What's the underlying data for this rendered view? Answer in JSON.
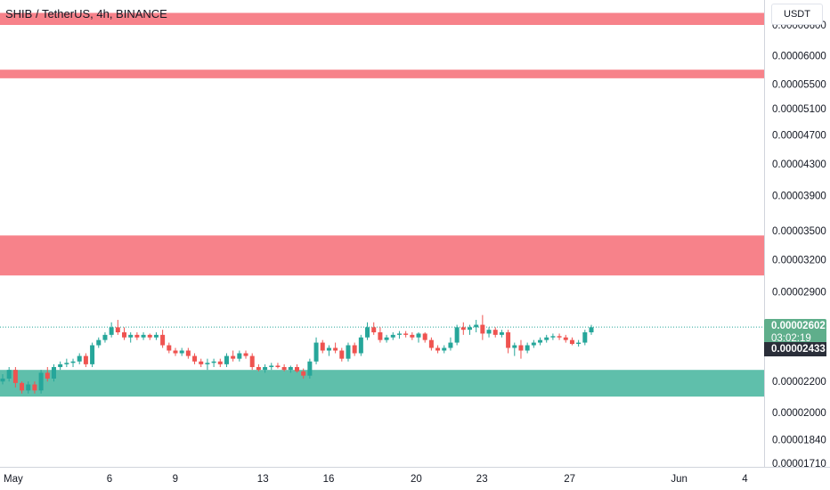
{
  "header": {
    "title": "SHIB / TetherUS, 4h, BINANCE",
    "currency": "USDT"
  },
  "price_tag": {
    "price": "0.00002602",
    "countdown": "03:02:19"
  },
  "low_tag": {
    "price": "0.00002433"
  },
  "colors": {
    "up": "#26a69a",
    "down": "#ef5350",
    "resistance_zone": "#f7828a",
    "support_zone": "#5fbfab",
    "grid_text": "#131722",
    "axis_line": "#d1d4dc"
  },
  "chart_data": {
    "type": "candlestick",
    "title": "SHIB / TetherUS, 4h, BINANCE",
    "y_axis": {
      "ticks": [
        {
          "label": "0.00006600",
          "value": 6.6
        },
        {
          "label": "0.00006000",
          "value": 6.0
        },
        {
          "label": "0.00005500",
          "value": 5.5
        },
        {
          "label": "0.00005100",
          "value": 5.1
        },
        {
          "label": "0.00004700",
          "value": 4.7
        },
        {
          "label": "0.00004300",
          "value": 4.3
        },
        {
          "label": "0.00003900",
          "value": 3.9
        },
        {
          "label": "0.00003500",
          "value": 3.5
        },
        {
          "label": "0.00003200",
          "value": 3.2
        },
        {
          "label": "0.00002900",
          "value": 2.9
        },
        {
          "label": "0.00002200",
          "value": 2.2
        },
        {
          "label": "0.00002000",
          "value": 2.0
        },
        {
          "label": "0.00001840",
          "value": 1.84
        },
        {
          "label": "0.00001710",
          "value": 1.71
        }
      ],
      "scale": "log"
    },
    "x_axis": {
      "ticks": [
        {
          "label": "May",
          "day": 1
        },
        {
          "label": "6",
          "day": 6
        },
        {
          "label": "9",
          "day": 9
        },
        {
          "label": "13",
          "day": 13
        },
        {
          "label": "16",
          "day": 16
        },
        {
          "label": "20",
          "day": 20
        },
        {
          "label": "23",
          "day": 23
        },
        {
          "label": "27",
          "day": 27
        },
        {
          "label": "Jun",
          "day": 32
        },
        {
          "label": "4",
          "day": 35
        }
      ]
    },
    "zones": [
      {
        "kind": "resistance",
        "from": 6.6,
        "to": 6.85
      },
      {
        "kind": "resistance",
        "from": 5.6,
        "to": 5.75
      },
      {
        "kind": "resistance",
        "from": 3.05,
        "to": 3.45
      },
      {
        "kind": "support",
        "from": 2.1,
        "to": 2.28
      }
    ],
    "last_price": 2.602,
    "low_price": 2.433,
    "candles": [
      [
        2.2,
        2.25,
        2.18,
        2.22
      ],
      [
        2.22,
        2.3,
        2.2,
        2.28
      ],
      [
        2.28,
        2.3,
        2.16,
        2.19
      ],
      [
        2.19,
        2.2,
        2.12,
        2.14
      ],
      [
        2.14,
        2.2,
        2.12,
        2.18
      ],
      [
        2.18,
        2.2,
        2.12,
        2.14
      ],
      [
        2.14,
        2.28,
        2.12,
        2.26
      ],
      [
        2.26,
        2.3,
        2.2,
        2.22
      ],
      [
        2.22,
        2.32,
        2.2,
        2.3
      ],
      [
        2.3,
        2.34,
        2.28,
        2.32
      ],
      [
        2.32,
        2.36,
        2.3,
        2.33
      ],
      [
        2.33,
        2.36,
        2.3,
        2.34
      ],
      [
        2.34,
        2.4,
        2.32,
        2.38
      ],
      [
        2.38,
        2.4,
        2.3,
        2.32
      ],
      [
        2.32,
        2.48,
        2.3,
        2.46
      ],
      [
        2.46,
        2.52,
        2.44,
        2.5
      ],
      [
        2.5,
        2.56,
        2.48,
        2.54
      ],
      [
        2.54,
        2.64,
        2.52,
        2.6
      ],
      [
        2.6,
        2.66,
        2.54,
        2.56
      ],
      [
        2.56,
        2.6,
        2.5,
        2.52
      ],
      [
        2.52,
        2.56,
        2.48,
        2.54
      ],
      [
        2.54,
        2.56,
        2.5,
        2.52
      ],
      [
        2.52,
        2.56,
        2.5,
        2.54
      ],
      [
        2.54,
        2.55,
        2.5,
        2.52
      ],
      [
        2.52,
        2.56,
        2.5,
        2.54
      ],
      [
        2.54,
        2.58,
        2.44,
        2.46
      ],
      [
        2.46,
        2.48,
        2.4,
        2.42
      ],
      [
        2.42,
        2.44,
        2.38,
        2.4
      ],
      [
        2.4,
        2.44,
        2.38,
        2.42
      ],
      [
        2.42,
        2.44,
        2.36,
        2.38
      ],
      [
        2.38,
        2.4,
        2.32,
        2.34
      ],
      [
        2.34,
        2.36,
        2.3,
        2.32
      ],
      [
        2.32,
        2.36,
        2.28,
        2.33
      ],
      [
        2.33,
        2.36,
        2.3,
        2.34
      ],
      [
        2.34,
        2.36,
        2.3,
        2.32
      ],
      [
        2.32,
        2.4,
        2.3,
        2.38
      ],
      [
        2.38,
        2.42,
        2.34,
        2.36
      ],
      [
        2.36,
        2.42,
        2.34,
        2.4
      ],
      [
        2.4,
        2.42,
        2.36,
        2.38
      ],
      [
        2.38,
        2.4,
        2.28,
        2.3
      ],
      [
        2.3,
        2.32,
        2.27,
        2.28
      ],
      [
        2.28,
        2.32,
        2.26,
        2.3
      ],
      [
        2.3,
        2.33,
        2.28,
        2.31
      ],
      [
        2.31,
        2.33,
        2.29,
        2.3
      ],
      [
        2.3,
        2.32,
        2.27,
        2.28
      ],
      [
        2.28,
        2.31,
        2.26,
        2.3
      ],
      [
        2.3,
        2.32,
        2.26,
        2.27
      ],
      [
        2.27,
        2.29,
        2.22,
        2.24
      ],
      [
        2.24,
        2.36,
        2.22,
        2.34
      ],
      [
        2.34,
        2.52,
        2.32,
        2.48
      ],
      [
        2.48,
        2.5,
        2.4,
        2.42
      ],
      [
        2.42,
        2.46,
        2.38,
        2.44
      ],
      [
        2.44,
        2.48,
        2.4,
        2.42
      ],
      [
        2.42,
        2.44,
        2.34,
        2.36
      ],
      [
        2.36,
        2.48,
        2.34,
        2.46
      ],
      [
        2.46,
        2.48,
        2.38,
        2.4
      ],
      [
        2.4,
        2.54,
        2.38,
        2.52
      ],
      [
        2.52,
        2.64,
        2.5,
        2.6
      ],
      [
        2.6,
        2.64,
        2.54,
        2.56
      ],
      [
        2.56,
        2.6,
        2.48,
        2.5
      ],
      [
        2.5,
        2.54,
        2.48,
        2.52
      ],
      [
        2.52,
        2.56,
        2.5,
        2.54
      ],
      [
        2.54,
        2.57,
        2.51,
        2.55
      ],
      [
        2.55,
        2.57,
        2.52,
        2.54
      ],
      [
        2.54,
        2.56,
        2.5,
        2.52
      ],
      [
        2.52,
        2.56,
        2.48,
        2.55
      ],
      [
        2.55,
        2.56,
        2.48,
        2.5
      ],
      [
        2.5,
        2.52,
        2.42,
        2.44
      ],
      [
        2.44,
        2.46,
        2.4,
        2.42
      ],
      [
        2.42,
        2.46,
        2.4,
        2.44
      ],
      [
        2.44,
        2.52,
        2.42,
        2.48
      ],
      [
        2.48,
        2.62,
        2.46,
        2.6
      ],
      [
        2.6,
        2.64,
        2.54,
        2.58
      ],
      [
        2.58,
        2.62,
        2.54,
        2.6
      ],
      [
        2.6,
        2.66,
        2.56,
        2.62
      ],
      [
        2.62,
        2.7,
        2.5,
        2.55
      ],
      [
        2.55,
        2.6,
        2.52,
        2.58
      ],
      [
        2.58,
        2.6,
        2.52,
        2.54
      ],
      [
        2.54,
        2.58,
        2.52,
        2.56
      ],
      [
        2.56,
        2.58,
        2.4,
        2.44
      ],
      [
        2.44,
        2.48,
        2.38,
        2.46
      ],
      [
        2.46,
        2.5,
        2.36,
        2.42
      ],
      [
        2.42,
        2.48,
        2.4,
        2.46
      ],
      [
        2.46,
        2.5,
        2.44,
        2.48
      ],
      [
        2.48,
        2.52,
        2.46,
        2.5
      ],
      [
        2.5,
        2.54,
        2.48,
        2.52
      ],
      [
        2.52,
        2.55,
        2.5,
        2.53
      ],
      [
        2.53,
        2.55,
        2.5,
        2.52
      ],
      [
        2.52,
        2.54,
        2.48,
        2.5
      ],
      [
        2.5,
        2.52,
        2.46,
        2.47
      ],
      [
        2.47,
        2.5,
        2.45,
        2.48
      ],
      [
        2.48,
        2.58,
        2.46,
        2.56
      ],
      [
        2.56,
        2.62,
        2.54,
        2.6
      ]
    ]
  }
}
